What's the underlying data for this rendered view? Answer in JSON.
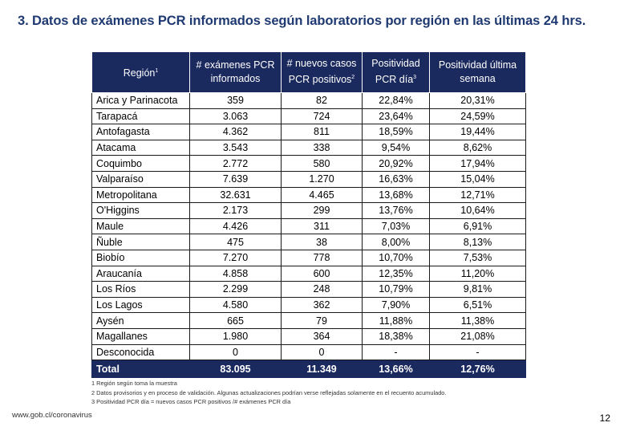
{
  "title": "3.  Datos de exámenes PCR informados según laboratorios por región en las últimas 24 hrs.",
  "table": {
    "headers": [
      {
        "text": "Región",
        "sup": "1"
      },
      {
        "text": "# exámenes PCR informados",
        "sup": ""
      },
      {
        "text": "# nuevos casos PCR positivos",
        "sup": "2"
      },
      {
        "text": "Positividad PCR día",
        "sup": "3"
      },
      {
        "text": "Positividad última semana",
        "sup": ""
      }
    ],
    "rows": [
      [
        "Arica y Parinacota",
        "359",
        "82",
        "22,84%",
        "20,31%"
      ],
      [
        "Tarapacá",
        "3.063",
        "724",
        "23,64%",
        "24,59%"
      ],
      [
        "Antofagasta",
        "4.362",
        "811",
        "18,59%",
        "19,44%"
      ],
      [
        "Atacama",
        "3.543",
        "338",
        "9,54%",
        "8,62%"
      ],
      [
        "Coquimbo",
        "2.772",
        "580",
        "20,92%",
        "17,94%"
      ],
      [
        "Valparaíso",
        "7.639",
        "1.270",
        "16,63%",
        "15,04%"
      ],
      [
        "Metropolitana",
        "32.631",
        "4.465",
        "13,68%",
        "12,71%"
      ],
      [
        "O'Higgins",
        "2.173",
        "299",
        "13,76%",
        "10,64%"
      ],
      [
        "Maule",
        "4.426",
        "311",
        "7,03%",
        "6,91%"
      ],
      [
        "Ñuble",
        "475",
        "38",
        "8,00%",
        "8,13%"
      ],
      [
        "Biobío",
        "7.270",
        "778",
        "10,70%",
        "7,53%"
      ],
      [
        "Araucanía",
        "4.858",
        "600",
        "12,35%",
        "11,20%"
      ],
      [
        "Los Ríos",
        "2.299",
        "248",
        "10,79%",
        "9,81%"
      ],
      [
        "Los Lagos",
        "4.580",
        "362",
        "7,90%",
        "6,51%"
      ],
      [
        "Aysén",
        "665",
        "79",
        "11,88%",
        "11,38%"
      ],
      [
        "Magallanes",
        "1.980",
        "364",
        "18,38%",
        "21,08%"
      ],
      [
        "Desconocida",
        "0",
        "0",
        "-",
        "-"
      ]
    ],
    "total": [
      "Total",
      "83.095",
      "11.349",
      "13,66%",
      "12,76%"
    ]
  },
  "notes": [
    "1 Región según toma la muestra",
    "2 Datos provisorios y en proceso de validación. Algunas actualizaciones podrían verse reflejadas solamente en el recuento acumulado.",
    "3 Positividad PCR día = nuevos casos PCR positivos /# exámenes PCR día"
  ],
  "footer": {
    "url": "www.gob.cl/coronavirus",
    "page": "12"
  }
}
